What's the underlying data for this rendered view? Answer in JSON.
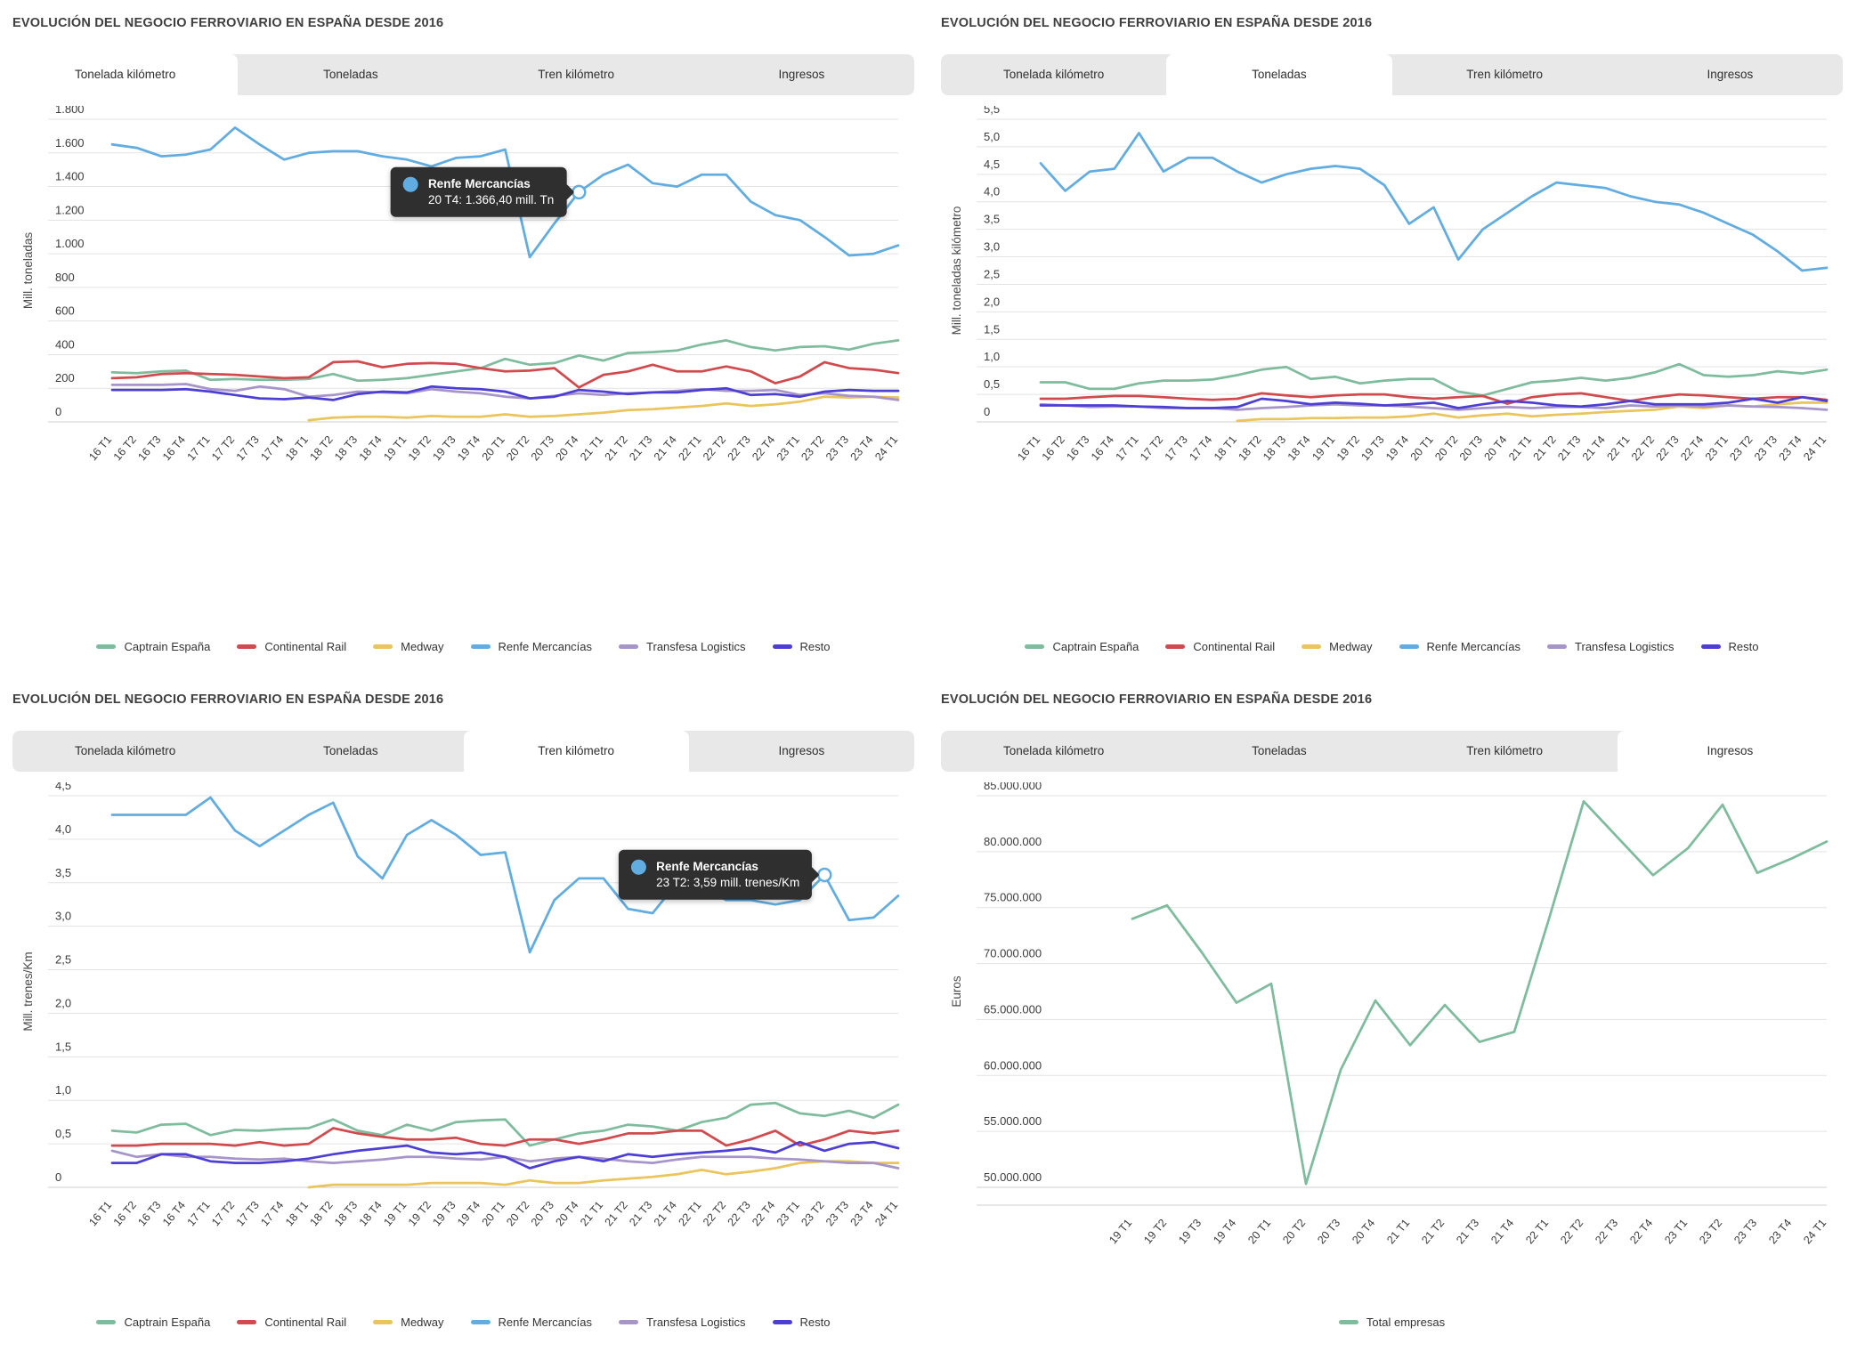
{
  "page": {
    "background": "#ffffff"
  },
  "colors": {
    "captrain": "#7fbc9e",
    "continental": "#d04a4e",
    "medway": "#eac45c",
    "renfe": "#61ace0",
    "transfesa": "#a794c8",
    "resto": "#4d3fd4",
    "total": "#7fbc9e",
    "grid": "#e3e3e3",
    "axis": "#cfcfcf",
    "text": "#3b3b3b",
    "tooltip_bg": "#2f2f2f"
  },
  "tabs": [
    {
      "label": "Tonelada kilómetro",
      "key": "tonelada-kilometro"
    },
    {
      "label": "Toneladas",
      "key": "toneladas"
    },
    {
      "label": "Tren kilómetro",
      "key": "tren-kilometro"
    },
    {
      "label": "Ingresos",
      "key": "ingresos"
    }
  ],
  "x_labels_full": [
    "16 T1",
    "16 T2",
    "16 T3",
    "16 T4",
    "17 T1",
    "17 T2",
    "17 T3",
    "17 T4",
    "18 T1",
    "18 T2",
    "18 T3",
    "18 T4",
    "19 T1",
    "19 T2",
    "19 T3",
    "19 T4",
    "20 T1",
    "20 T2",
    "20 T3",
    "20 T4",
    "21 T1",
    "21 T2",
    "21 T3",
    "21 T4",
    "22 T1",
    "22 T2",
    "22 T3",
    "22 T4",
    "23 T1",
    "23 T2",
    "23 T3",
    "23 T4",
    "24 T1"
  ],
  "x_labels_short": [
    "19 T1",
    "19 T2",
    "19 T3",
    "19 T4",
    "20 T1",
    "20 T2",
    "20 T3",
    "20 T4",
    "21 T1",
    "21 T2",
    "21 T3",
    "21 T4",
    "22 T1",
    "22 T2",
    "22 T3",
    "22 T4",
    "23 T1",
    "23 T2",
    "23 T3",
    "23 T4",
    "24 T1"
  ],
  "chart_data": [
    {
      "type": "line",
      "title": "EVOLUCIÓN DEL NEGOCIO FERROVIARIO EN ESPAÑA DESDE 2016",
      "active_tab": 0,
      "y_axis_title": "Mill. toneladas",
      "y_min": 0,
      "y_max": 1800,
      "y_tick_values": [
        0,
        200,
        400,
        600,
        800,
        1000,
        1200,
        1400,
        1600,
        1800
      ],
      "y_tick_labels": [
        "0",
        "200",
        "400",
        "600",
        "800",
        "1.000",
        "1.200",
        "1.400",
        "1.600",
        "1.800"
      ],
      "x_key": "full",
      "grid": true,
      "legend_position": "bottom",
      "series": [
        {
          "name": "Captrain España",
          "color": "captrain",
          "values": [
            295,
            290,
            300,
            305,
            250,
            255,
            250,
            250,
            255,
            285,
            245,
            250,
            260,
            280,
            300,
            320,
            375,
            340,
            350,
            395,
            365,
            410,
            415,
            425,
            460,
            485,
            445,
            425,
            445,
            450,
            430,
            465,
            485
          ]
        },
        {
          "name": "Continental Rail",
          "color": "continental",
          "values": [
            260,
            265,
            285,
            290,
            285,
            280,
            270,
            260,
            265,
            355,
            360,
            325,
            345,
            350,
            345,
            320,
            300,
            305,
            320,
            205,
            280,
            300,
            340,
            300,
            300,
            330,
            300,
            230,
            270,
            355,
            320,
            310,
            290
          ]
        },
        {
          "name": "Medway",
          "color": "medway",
          "values": [
            null,
            null,
            null,
            null,
            null,
            null,
            null,
            null,
            10,
            25,
            30,
            30,
            25,
            35,
            30,
            30,
            45,
            30,
            35,
            45,
            55,
            70,
            75,
            85,
            95,
            110,
            95,
            105,
            120,
            150,
            145,
            150,
            145
          ]
        },
        {
          "name": "Renfe Mercancías",
          "color": "renfe",
          "values": [
            1650,
            1630,
            1580,
            1590,
            1620,
            1750,
            1650,
            1560,
            1600,
            1610,
            1610,
            1580,
            1560,
            1520,
            1570,
            1580,
            1620,
            980,
            1180,
            1366.4,
            1470,
            1530,
            1420,
            1400,
            1470,
            1470,
            1310,
            1230,
            1200,
            1100,
            990,
            1000,
            1050
          ]
        },
        {
          "name": "Transfesa Logistics",
          "color": "transfesa",
          "values": [
            220,
            220,
            220,
            225,
            195,
            185,
            210,
            195,
            150,
            160,
            180,
            175,
            170,
            195,
            180,
            170,
            150,
            140,
            155,
            170,
            160,
            170,
            175,
            185,
            195,
            185,
            185,
            190,
            160,
            170,
            155,
            150,
            130
          ]
        },
        {
          "name": "Resto",
          "color": "resto",
          "values": [
            190,
            190,
            190,
            195,
            180,
            160,
            140,
            135,
            145,
            130,
            165,
            180,
            175,
            210,
            200,
            195,
            180,
            140,
            150,
            190,
            180,
            165,
            175,
            175,
            190,
            200,
            160,
            165,
            150,
            180,
            190,
            185,
            185
          ]
        }
      ],
      "tooltip": {
        "series": "Renfe Mercancías",
        "label": "20 T4: 1.366,40 mill. Tn",
        "series_index": 3,
        "point_index": 19
      }
    },
    {
      "type": "line",
      "title": "EVOLUCIÓN DEL NEGOCIO FERROVIARIO EN ESPAÑA DESDE 2016",
      "active_tab": 1,
      "y_axis_title": "Mill. toneladas kilómetro",
      "y_min": 0,
      "y_max": 5.5,
      "y_tick_values": [
        0,
        0.5,
        1,
        1.5,
        2,
        2.5,
        3,
        3.5,
        4,
        4.5,
        5,
        5.5
      ],
      "y_tick_labels": [
        "0",
        "0,5",
        "1,0",
        "1,5",
        "2,0",
        "2,5",
        "3,0",
        "3,5",
        "4,0",
        "4,5",
        "5,0",
        "5,5"
      ],
      "x_key": "full",
      "grid": true,
      "legend_position": "bottom",
      "series": [
        {
          "name": "Captrain España",
          "color": "captrain",
          "values": [
            0.72,
            0.72,
            0.6,
            0.6,
            0.7,
            0.75,
            0.75,
            0.77,
            0.85,
            0.95,
            1.0,
            0.78,
            0.82,
            0.7,
            0.75,
            0.78,
            0.78,
            0.55,
            0.48,
            0.6,
            0.72,
            0.75,
            0.8,
            0.75,
            0.8,
            0.9,
            1.05,
            0.85,
            0.82,
            0.85,
            0.92,
            0.88,
            0.95
          ]
        },
        {
          "name": "Continental Rail",
          "color": "continental",
          "values": [
            0.42,
            0.42,
            0.45,
            0.47,
            0.47,
            0.45,
            0.42,
            0.4,
            0.42,
            0.52,
            0.48,
            0.45,
            0.48,
            0.5,
            0.5,
            0.45,
            0.42,
            0.45,
            0.47,
            0.33,
            0.45,
            0.5,
            0.52,
            0.45,
            0.38,
            0.45,
            0.5,
            0.48,
            0.45,
            0.42,
            0.45,
            0.45,
            0.4
          ]
        },
        {
          "name": "Medway",
          "color": "medway",
          "values": [
            null,
            null,
            null,
            null,
            null,
            null,
            null,
            null,
            0.02,
            0.05,
            0.05,
            0.07,
            0.07,
            0.08,
            0.08,
            0.1,
            0.15,
            0.08,
            0.12,
            0.15,
            0.1,
            0.13,
            0.15,
            0.18,
            0.2,
            0.22,
            0.28,
            0.25,
            0.3,
            0.28,
            0.32,
            0.35,
            0.35
          ]
        },
        {
          "name": "Renfe Mercancías",
          "color": "renfe",
          "values": [
            4.7,
            4.2,
            4.55,
            4.6,
            5.25,
            4.55,
            4.8,
            4.8,
            4.55,
            4.35,
            4.5,
            4.6,
            4.65,
            4.6,
            4.3,
            3.6,
            3.9,
            2.95,
            3.5,
            3.8,
            4.1,
            4.35,
            4.3,
            4.25,
            4.1,
            4.0,
            3.95,
            3.8,
            3.6,
            3.4,
            3.1,
            2.75,
            2.8
          ]
        },
        {
          "name": "Transfesa Logistics",
          "color": "transfesa",
          "values": [
            0.32,
            0.3,
            0.27,
            0.28,
            0.28,
            0.25,
            0.25,
            0.25,
            0.22,
            0.25,
            0.27,
            0.3,
            0.32,
            0.3,
            0.3,
            0.28,
            0.25,
            0.22,
            0.25,
            0.27,
            0.25,
            0.27,
            0.27,
            0.25,
            0.3,
            0.28,
            0.3,
            0.28,
            0.3,
            0.28,
            0.27,
            0.25,
            0.22
          ]
        },
        {
          "name": "Resto",
          "color": "resto",
          "values": [
            0.3,
            0.3,
            0.3,
            0.3,
            0.28,
            0.27,
            0.25,
            0.25,
            0.27,
            0.42,
            0.38,
            0.32,
            0.35,
            0.33,
            0.3,
            0.32,
            0.35,
            0.25,
            0.32,
            0.38,
            0.35,
            0.3,
            0.28,
            0.32,
            0.38,
            0.32,
            0.32,
            0.32,
            0.35,
            0.42,
            0.35,
            0.45,
            0.38
          ]
        }
      ],
      "tooltip": null
    },
    {
      "type": "line",
      "title": "EVOLUCIÓN DEL NEGOCIO FERROVIARIO EN ESPAÑA DESDE 2016",
      "active_tab": 2,
      "y_axis_title": "Mill. trenes/Km",
      "y_min": 0,
      "y_max": 4.5,
      "y_tick_values": [
        0,
        0.5,
        1,
        1.5,
        2,
        2.5,
        3,
        3.5,
        4,
        4.5
      ],
      "y_tick_labels": [
        "0",
        "0,5",
        "1,0",
        "1,5",
        "2,0",
        "2,5",
        "3,0",
        "3,5",
        "4,0",
        "4,5"
      ],
      "x_key": "full",
      "grid": true,
      "legend_position": "bottom",
      "series": [
        {
          "name": "Captrain España",
          "color": "captrain",
          "values": [
            0.65,
            0.63,
            0.72,
            0.73,
            0.6,
            0.66,
            0.65,
            0.67,
            0.68,
            0.78,
            0.65,
            0.6,
            0.72,
            0.65,
            0.75,
            0.77,
            0.78,
            0.48,
            0.55,
            0.62,
            0.65,
            0.72,
            0.7,
            0.65,
            0.75,
            0.8,
            0.95,
            0.97,
            0.85,
            0.82,
            0.88,
            0.8,
            0.95
          ]
        },
        {
          "name": "Continental Rail",
          "color": "continental",
          "values": [
            0.48,
            0.48,
            0.5,
            0.5,
            0.5,
            0.48,
            0.52,
            0.48,
            0.5,
            0.68,
            0.62,
            0.58,
            0.55,
            0.55,
            0.57,
            0.5,
            0.48,
            0.55,
            0.55,
            0.5,
            0.55,
            0.62,
            0.62,
            0.65,
            0.65,
            0.48,
            0.55,
            0.65,
            0.48,
            0.55,
            0.65,
            0.62,
            0.65
          ]
        },
        {
          "name": "Medway",
          "color": "medway",
          "values": [
            null,
            null,
            null,
            null,
            null,
            null,
            null,
            null,
            0.0,
            0.03,
            0.03,
            0.03,
            0.03,
            0.05,
            0.05,
            0.05,
            0.03,
            0.08,
            0.05,
            0.05,
            0.08,
            0.1,
            0.12,
            0.15,
            0.2,
            0.15,
            0.18,
            0.22,
            0.28,
            0.3,
            0.3,
            0.28,
            0.28
          ]
        },
        {
          "name": "Renfe Mercancías",
          "color": "renfe",
          "values": [
            4.28,
            4.28,
            4.28,
            4.28,
            4.48,
            4.1,
            3.92,
            4.1,
            4.28,
            4.42,
            3.8,
            3.55,
            4.05,
            4.22,
            4.05,
            3.82,
            3.85,
            2.7,
            3.3,
            3.55,
            3.55,
            3.2,
            3.15,
            3.5,
            3.45,
            3.3,
            3.3,
            3.25,
            3.3,
            3.59,
            3.07,
            3.1,
            3.35
          ]
        },
        {
          "name": "Transfesa Logistics",
          "color": "transfesa",
          "values": [
            0.42,
            0.35,
            0.38,
            0.35,
            0.35,
            0.33,
            0.32,
            0.33,
            0.3,
            0.28,
            0.3,
            0.32,
            0.35,
            0.35,
            0.33,
            0.32,
            0.35,
            0.3,
            0.33,
            0.35,
            0.33,
            0.3,
            0.28,
            0.32,
            0.35,
            0.35,
            0.35,
            0.33,
            0.32,
            0.3,
            0.28,
            0.28,
            0.22
          ]
        },
        {
          "name": "Resto",
          "color": "resto",
          "values": [
            0.28,
            0.28,
            0.38,
            0.38,
            0.3,
            0.28,
            0.28,
            0.3,
            0.33,
            0.38,
            0.42,
            0.45,
            0.48,
            0.4,
            0.38,
            0.4,
            0.35,
            0.22,
            0.3,
            0.35,
            0.3,
            0.38,
            0.35,
            0.38,
            0.4,
            0.42,
            0.45,
            0.4,
            0.52,
            0.42,
            0.5,
            0.52,
            0.45
          ]
        }
      ],
      "tooltip": {
        "series": "Renfe Mercancías",
        "label": "23 T2: 3,59 mill. trenes/Km",
        "series_index": 3,
        "point_index": 29
      }
    },
    {
      "type": "line",
      "title": "EVOLUCIÓN DEL NEGOCIO FERROVIARIO EN ESPAÑA DESDE 2016",
      "active_tab": 3,
      "y_axis_title": "Euros",
      "y_min": 50000000,
      "y_max": 85000000,
      "y_tick_values": [
        50000000,
        55000000,
        60000000,
        65000000,
        70000000,
        75000000,
        80000000,
        85000000
      ],
      "y_tick_labels": [
        "50.000.000",
        "55.000.000",
        "60.000.000",
        "65.000.000",
        "70.000.000",
        "75.000.000",
        "80.000.000",
        "85.000.000"
      ],
      "x_key": "short",
      "grid": true,
      "legend_position": "bottom",
      "series": [
        {
          "name": "Total empresas",
          "color": "total",
          "values": [
            74000000,
            75200000,
            71000000,
            66500000,
            68200000,
            50300000,
            60500000,
            66700000,
            62700000,
            66300000,
            63000000,
            63900000,
            74000000,
            84500000,
            81200000,
            77900000,
            80300000,
            84200000,
            78100000,
            79400000,
            80900000
          ]
        }
      ],
      "tooltip": null
    }
  ]
}
